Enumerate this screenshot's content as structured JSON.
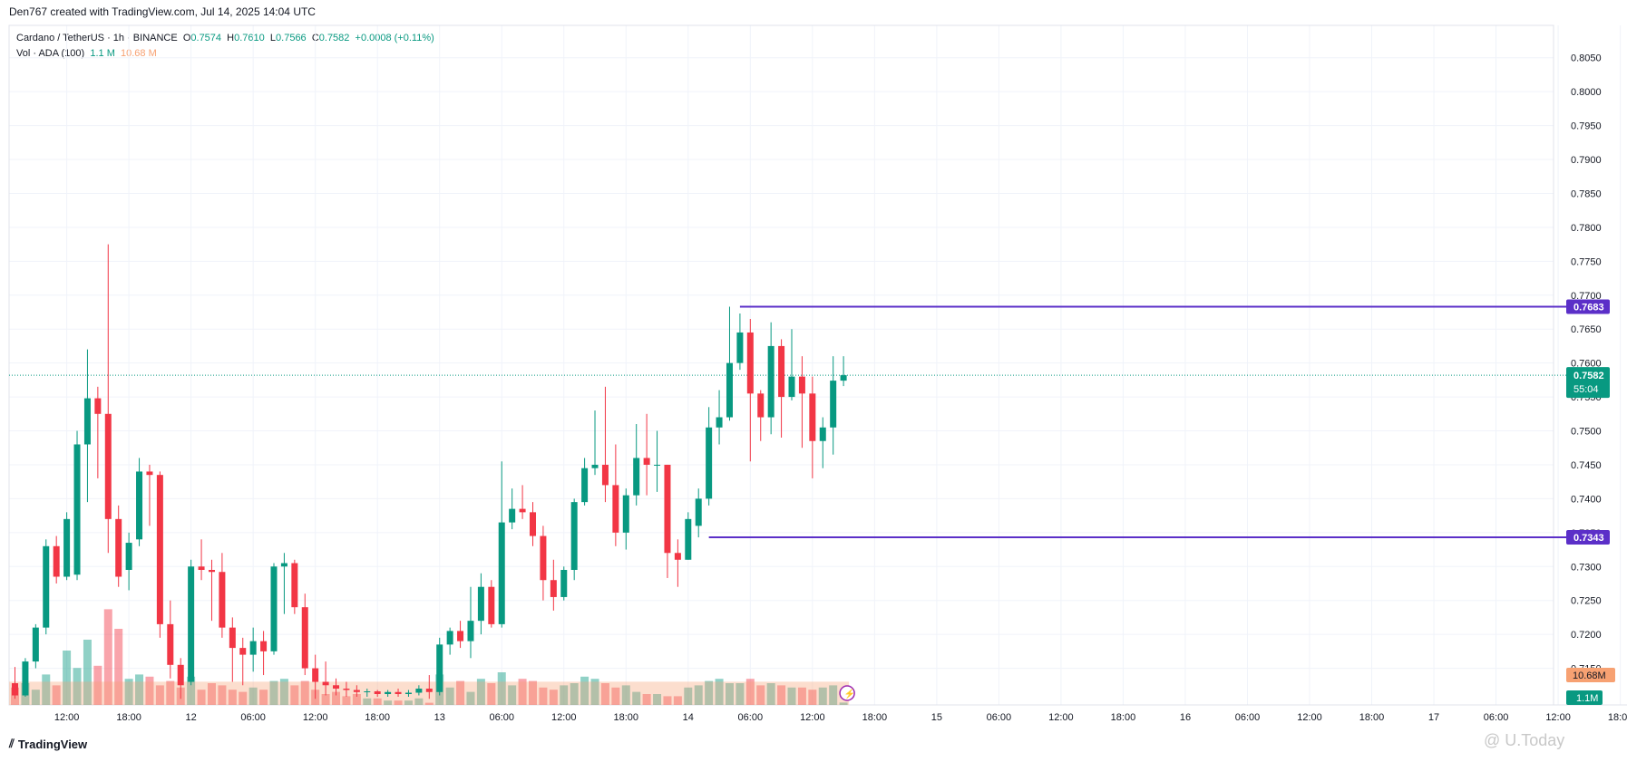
{
  "caption": "Den767 created with TradingView.com, Jul 14, 2025 14:04 UTC",
  "legend": {
    "symbol": "Cardano / TetherUS · 1h · BINANCE",
    "o_label": "O",
    "o": "0.7574",
    "h_label": "H",
    "h": "0.7610",
    "l_label": "L",
    "l": "0.7566",
    "c_label": "C",
    "c": "0.7582",
    "change": "+0.0008 (+0.11%)",
    "vol_label": "Vol · ADA (100)",
    "vol": "1.1 M",
    "vol_ma": "10.68 M"
  },
  "footer": {
    "logo_text": "TradingView",
    "watermark": "@ U.Today"
  },
  "colors": {
    "up": "#089981",
    "down": "#f23645",
    "level": "#5b2fc8",
    "vol_ma": "#f7a172",
    "current_price": "#089981"
  },
  "chart_data": {
    "type": "candlestick",
    "timeframe": "1h",
    "ylim": [
      0.71,
      0.8075
    ],
    "y_ticks": [
      "0.8050",
      "0.8000",
      "0.7950",
      "0.7900",
      "0.7850",
      "0.7800",
      "0.7750",
      "0.7700",
      "0.7650",
      "0.7600",
      "0.7550",
      "0.7500",
      "0.7450",
      "0.7400",
      "0.7350",
      "0.7300",
      "0.7250",
      "0.7200",
      "0.7150"
    ],
    "x_ticks": [
      {
        "label": "12:00",
        "bar": 5
      },
      {
        "label": "18:00",
        "bar": 11
      },
      {
        "label": "12",
        "bar": 17
      },
      {
        "label": "06:00",
        "bar": 23
      },
      {
        "label": "12:00",
        "bar": 29
      },
      {
        "label": "18:00",
        "bar": 35
      },
      {
        "label": "13",
        "bar": 41
      },
      {
        "label": "06:00",
        "bar": 47
      },
      {
        "label": "12:00",
        "bar": 53
      },
      {
        "label": "18:00",
        "bar": 59
      },
      {
        "label": "14",
        "bar": 65
      },
      {
        "label": "06:00",
        "bar": 71
      },
      {
        "label": "12:00",
        "bar": 77
      },
      {
        "label": "18:00",
        "bar": 83
      },
      {
        "label": "15",
        "bar": 89
      },
      {
        "label": "06:00",
        "bar": 95
      },
      {
        "label": "12:00",
        "bar": 101
      },
      {
        "label": "18:00",
        "bar": 107
      },
      {
        "label": "16",
        "bar": 113
      },
      {
        "label": "06:00",
        "bar": 119
      },
      {
        "label": "12:00",
        "bar": 125
      },
      {
        "label": "18:00",
        "bar": 131
      },
      {
        "label": "17",
        "bar": 137
      },
      {
        "label": "06:00",
        "bar": 143
      },
      {
        "label": "12:00",
        "bar": 149
      },
      {
        "label": "18:00",
        "bar": 155
      }
    ],
    "candles": [
      [
        0.7128,
        0.7152,
        0.7105,
        0.711
      ],
      [
        0.711,
        0.7165,
        0.7108,
        0.716
      ],
      [
        0.716,
        0.7215,
        0.715,
        0.721
      ],
      [
        0.721,
        0.734,
        0.72,
        0.733
      ],
      [
        0.733,
        0.7345,
        0.7275,
        0.7285
      ],
      [
        0.7285,
        0.738,
        0.728,
        0.737
      ],
      [
        0.7288,
        0.75,
        0.728,
        0.748
      ],
      [
        0.748,
        0.762,
        0.7395,
        0.7548
      ],
      [
        0.7548,
        0.7565,
        0.743,
        0.7525
      ],
      [
        0.7525,
        0.7775,
        0.732,
        0.737
      ],
      [
        0.737,
        0.739,
        0.727,
        0.7285
      ],
      [
        0.7295,
        0.735,
        0.7265,
        0.7335
      ],
      [
        0.734,
        0.746,
        0.733,
        0.744
      ],
      [
        0.744,
        0.745,
        0.736,
        0.7435
      ],
      [
        0.7435,
        0.744,
        0.7195,
        0.7215
      ],
      [
        0.7215,
        0.725,
        0.7135,
        0.7155
      ],
      [
        0.7155,
        0.7165,
        0.7105,
        0.7125
      ],
      [
        0.713,
        0.731,
        0.7125,
        0.73
      ],
      [
        0.73,
        0.734,
        0.728,
        0.7295
      ],
      [
        0.7295,
        0.731,
        0.722,
        0.7292
      ],
      [
        0.7292,
        0.732,
        0.7195,
        0.721
      ],
      [
        0.721,
        0.7225,
        0.713,
        0.718
      ],
      [
        0.718,
        0.7195,
        0.7125,
        0.717
      ],
      [
        0.717,
        0.721,
        0.7145,
        0.719
      ],
      [
        0.719,
        0.7205,
        0.714,
        0.7175
      ],
      [
        0.7175,
        0.7305,
        0.717,
        0.73
      ],
      [
        0.73,
        0.732,
        0.723,
        0.7305
      ],
      [
        0.7305,
        0.731,
        0.723,
        0.724
      ],
      [
        0.724,
        0.726,
        0.714,
        0.715
      ],
      [
        0.715,
        0.717,
        0.7105,
        0.713
      ],
      [
        0.713,
        0.716,
        0.711,
        0.7125
      ],
      [
        0.7125,
        0.7135,
        0.711,
        0.712
      ],
      [
        0.712,
        0.713,
        0.7108,
        0.7118
      ],
      [
        0.7118,
        0.7125,
        0.7108,
        0.7115
      ],
      [
        0.7115,
        0.712,
        0.7108,
        0.7116
      ],
      [
        0.7116,
        0.7118,
        0.7108,
        0.7112
      ],
      [
        0.7112,
        0.7118,
        0.7108,
        0.7115
      ],
      [
        0.7115,
        0.712,
        0.7108,
        0.7112
      ],
      [
        0.7112,
        0.7118,
        0.7108,
        0.7114
      ],
      [
        0.7114,
        0.7125,
        0.711,
        0.712
      ],
      [
        0.712,
        0.714,
        0.7105,
        0.7115
      ],
      [
        0.7115,
        0.7195,
        0.711,
        0.7185
      ],
      [
        0.7185,
        0.721,
        0.717,
        0.7205
      ],
      [
        0.7205,
        0.722,
        0.718,
        0.719
      ],
      [
        0.719,
        0.727,
        0.7165,
        0.722
      ],
      [
        0.722,
        0.729,
        0.72,
        0.727
      ],
      [
        0.727,
        0.728,
        0.721,
        0.7215
      ],
      [
        0.7215,
        0.7455,
        0.721,
        0.7365
      ],
      [
        0.7365,
        0.7415,
        0.7355,
        0.7385
      ],
      [
        0.7385,
        0.742,
        0.737,
        0.738
      ],
      [
        0.738,
        0.7395,
        0.733,
        0.7345
      ],
      [
        0.7345,
        0.736,
        0.725,
        0.728
      ],
      [
        0.728,
        0.731,
        0.7235,
        0.7255
      ],
      [
        0.7255,
        0.73,
        0.725,
        0.7295
      ],
      [
        0.7295,
        0.74,
        0.728,
        0.7395
      ],
      [
        0.7395,
        0.746,
        0.739,
        0.7445
      ],
      [
        0.7445,
        0.753,
        0.7435,
        0.745
      ],
      [
        0.745,
        0.7565,
        0.7395,
        0.742
      ],
      [
        0.742,
        0.748,
        0.733,
        0.735
      ],
      [
        0.735,
        0.7415,
        0.7325,
        0.7405
      ],
      [
        0.7405,
        0.751,
        0.739,
        0.746
      ],
      [
        0.746,
        0.7525,
        0.7405,
        0.745
      ],
      [
        0.745,
        0.75,
        0.741,
        0.745
      ],
      [
        0.745,
        0.745,
        0.7283,
        0.732
      ],
      [
        0.732,
        0.734,
        0.727,
        0.731
      ],
      [
        0.731,
        0.738,
        0.731,
        0.737
      ],
      [
        0.736,
        0.7415,
        0.7343,
        0.74
      ],
      [
        0.74,
        0.7535,
        0.739,
        0.7505
      ],
      [
        0.7505,
        0.756,
        0.748,
        0.752
      ],
      [
        0.752,
        0.7683,
        0.7515,
        0.76
      ],
      [
        0.76,
        0.7673,
        0.759,
        0.7645
      ],
      [
        0.7645,
        0.7665,
        0.7455,
        0.7555
      ],
      [
        0.7555,
        0.756,
        0.7485,
        0.752
      ],
      [
        0.752,
        0.766,
        0.7495,
        0.7625
      ],
      [
        0.7625,
        0.7635,
        0.749,
        0.755
      ],
      [
        0.755,
        0.765,
        0.7545,
        0.758
      ],
      [
        0.758,
        0.761,
        0.7475,
        0.7555
      ],
      [
        0.7555,
        0.758,
        0.743,
        0.7485
      ],
      [
        0.7485,
        0.752,
        0.7445,
        0.7505
      ],
      [
        0.7505,
        0.761,
        0.7465,
        0.7574
      ],
      [
        0.7574,
        0.761,
        0.7566,
        0.7582
      ]
    ],
    "volume_unit": "M",
    "volume_ma_period": 100,
    "volume_ma": 10.68,
    "last_volume": 1.1,
    "volumes": [
      8,
      10,
      7,
      14,
      9,
      25,
      17,
      30,
      18,
      44,
      35,
      12,
      14,
      13,
      9,
      11,
      8,
      13,
      7,
      10,
      9,
      7,
      6,
      8,
      7,
      11,
      12,
      9,
      11,
      7,
      5,
      6,
      4,
      5,
      3,
      3,
      2,
      2,
      2,
      3,
      1,
      14,
      8,
      11,
      6,
      12,
      10,
      15,
      9,
      12,
      11,
      8,
      7,
      9,
      10,
      13,
      12,
      10,
      8,
      9,
      6,
      5,
      5,
      4,
      4,
      8,
      9,
      11,
      12,
      10,
      10,
      12,
      9,
      10,
      9,
      8,
      8,
      7,
      8,
      9,
      1.1
    ],
    "horizontal_levels": [
      {
        "value": 0.7683,
        "label": "0.7683",
        "start_bar": 70
      },
      {
        "value": 0.7343,
        "label": "0.7343",
        "start_bar": 67
      }
    ],
    "current_price": {
      "value": 0.7582,
      "label": "0.7582",
      "countdown": "55:04"
    },
    "volume_axis_labels": {
      "ma": "10.68M",
      "vol": "1.1M"
    }
  }
}
